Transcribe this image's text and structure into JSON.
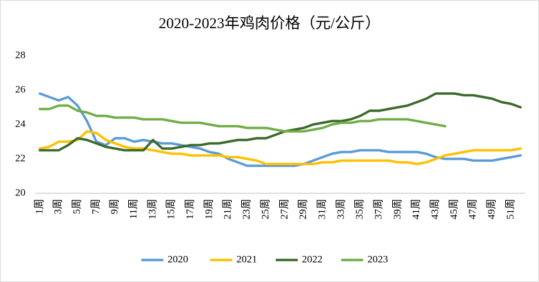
{
  "chart_data": {
    "type": "line",
    "title": "2020-2023年鸡肉价格（元/公斤）",
    "categories": [
      "1周",
      null,
      "3周",
      null,
      "5周",
      null,
      "7周",
      null,
      "9周",
      null,
      "11周",
      null,
      "13周",
      null,
      "15周",
      null,
      "17周",
      null,
      "19周",
      null,
      "21周",
      null,
      "23周",
      null,
      "25周",
      null,
      "27周",
      null,
      "29周",
      null,
      "31周",
      null,
      "33周",
      null,
      "35周",
      null,
      "37周",
      null,
      "39周",
      null,
      "41周",
      null,
      "43周",
      null,
      "45周",
      null,
      "47周",
      null,
      "49周",
      null,
      "51周",
      null
    ],
    "series": [
      {
        "name": "2020",
        "color": "#5b9bd5",
        "values": [
          25.8,
          25.6,
          25.4,
          25.6,
          25.1,
          24.2,
          23.0,
          22.8,
          23.2,
          23.2,
          23.0,
          23.1,
          23.0,
          22.9,
          22.9,
          22.8,
          22.7,
          22.6,
          22.4,
          22.3,
          22.0,
          21.8,
          21.6,
          21.6,
          21.6,
          21.6,
          21.6,
          21.6,
          21.7,
          21.9,
          22.1,
          22.3,
          22.4,
          22.4,
          22.5,
          22.5,
          22.5,
          22.4,
          22.4,
          22.4,
          22.4,
          22.3,
          22.1,
          22.0,
          22.0,
          22.0,
          21.9,
          21.9,
          21.9,
          22.0,
          22.1,
          22.2
        ]
      },
      {
        "name": "2021",
        "color": "#ffc000",
        "values": [
          22.6,
          22.7,
          23.0,
          23.0,
          23.1,
          23.6,
          23.5,
          23.1,
          22.9,
          22.7,
          22.6,
          22.6,
          22.5,
          22.4,
          22.3,
          22.3,
          22.2,
          22.2,
          22.2,
          22.2,
          22.1,
          22.1,
          22.0,
          21.9,
          21.7,
          21.7,
          21.7,
          21.7,
          21.7,
          21.7,
          21.8,
          21.8,
          21.9,
          21.9,
          21.9,
          21.9,
          21.9,
          21.9,
          21.8,
          21.8,
          21.7,
          21.8,
          22.0,
          22.2,
          22.3,
          22.4,
          22.5,
          22.5,
          22.5,
          22.5,
          22.5,
          22.6
        ]
      },
      {
        "name": "2022",
        "color": "#3b6a2a",
        "values": [
          22.5,
          22.5,
          22.5,
          22.8,
          23.2,
          23.1,
          22.9,
          22.7,
          22.6,
          22.5,
          22.5,
          22.5,
          23.1,
          22.6,
          22.6,
          22.7,
          22.8,
          22.8,
          22.9,
          22.9,
          23.0,
          23.1,
          23.1,
          23.2,
          23.2,
          23.4,
          23.6,
          23.7,
          23.8,
          24.0,
          24.1,
          24.2,
          24.2,
          24.3,
          24.5,
          24.8,
          24.8,
          24.9,
          25.0,
          25.1,
          25.3,
          25.5,
          25.8,
          25.8,
          25.8,
          25.7,
          25.7,
          25.6,
          25.5,
          25.3,
          25.2,
          25.0
        ]
      },
      {
        "name": "2023",
        "color": "#70ad47",
        "values": [
          24.9,
          24.9,
          25.1,
          25.1,
          24.8,
          24.7,
          24.5,
          24.5,
          24.4,
          24.4,
          24.4,
          24.3,
          24.3,
          24.3,
          24.2,
          24.1,
          24.1,
          24.1,
          24.0,
          23.9,
          23.9,
          23.9,
          23.8,
          23.8,
          23.8,
          23.7,
          23.6,
          23.6,
          23.6,
          23.7,
          23.8,
          24.0,
          24.1,
          24.1,
          24.2,
          24.2,
          24.3,
          24.3,
          24.3,
          24.3,
          24.2,
          24.1,
          24.0,
          23.9,
          null,
          null,
          null,
          null,
          null,
          null,
          null,
          null
        ]
      }
    ],
    "ylim": [
      20,
      28
    ],
    "yticks": [
      20,
      22,
      24,
      26,
      28
    ],
    "grid": false,
    "legend": "bottom"
  }
}
